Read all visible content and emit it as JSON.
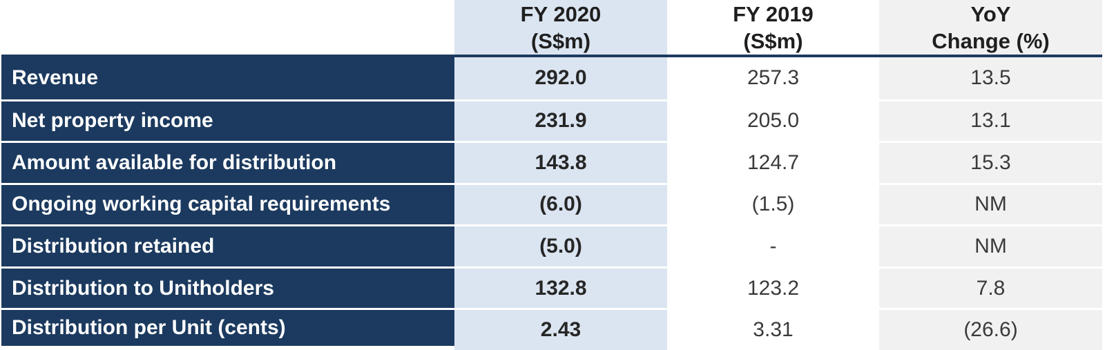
{
  "colors": {
    "navy": "#1C3A5F",
    "light_blue": "#DBE5F1",
    "light_gray": "#F1F1F1",
    "separator": "#FFFFFF",
    "header_text": "#1F1F1F",
    "value_text": "#3A3A3A",
    "label_text": "#FFFFFF"
  },
  "table": {
    "header": {
      "col_fy2020": {
        "line1": "FY 2020",
        "line2": "(S$m)"
      },
      "col_fy2019": {
        "line1": "FY 2019",
        "line2": "(S$m)"
      },
      "col_yoy": {
        "line1": "YoY",
        "line2": "Change (%)"
      }
    },
    "rows": [
      {
        "label": "Revenue",
        "fy2020": "292.0",
        "fy2019": "257.3",
        "yoy": "13.5"
      },
      {
        "label": "Net property income",
        "fy2020": "231.9",
        "fy2019": "205.0",
        "yoy": "13.1"
      },
      {
        "label": "Amount available for distribution",
        "fy2020": "143.8",
        "fy2019": "124.7",
        "yoy": "15.3"
      },
      {
        "label": "Ongoing working capital requirements",
        "fy2020": "(6.0)",
        "fy2019": "(1.5)",
        "yoy": "NM"
      },
      {
        "label": "Distribution retained",
        "fy2020": "(5.0)",
        "fy2019": "-",
        "yoy": "NM"
      },
      {
        "label": "Distribution to Unitholders",
        "fy2020": "132.8",
        "fy2019": "123.2",
        "yoy": "7.8"
      },
      {
        "label": "Distribution per Unit (cents)",
        "fy2020": "2.43",
        "fy2019": "3.31",
        "yoy": "(26.6)"
      }
    ]
  }
}
